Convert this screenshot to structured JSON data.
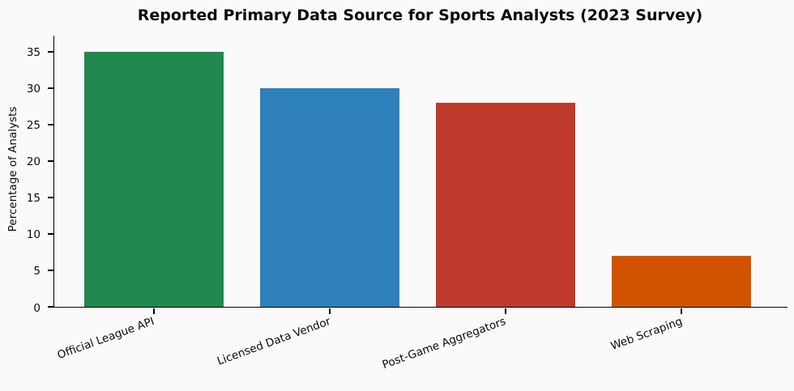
{
  "chart_data": {
    "type": "bar",
    "title": "Reported Primary Data Source for Sports Analysts (2023 Survey)",
    "xlabel": "",
    "ylabel": "Percentage of Analysts",
    "categories": [
      "Official League API",
      "Licensed Data Vendor",
      "Post-Game Aggregators",
      "Web Scraping"
    ],
    "values": [
      35,
      30,
      28,
      7
    ],
    "bar_colors": [
      "#21894e",
      "#2d80b9",
      "#c03a2c",
      "#d35400"
    ],
    "ylim": [
      0,
      37.2
    ],
    "yticks": [
      0,
      5,
      10,
      15,
      20,
      25,
      30,
      35
    ],
    "grid": false,
    "legend_position": "none",
    "background_color": "#fafafa",
    "axis_color": "#000000",
    "x_tick_rotation_deg": 20
  }
}
